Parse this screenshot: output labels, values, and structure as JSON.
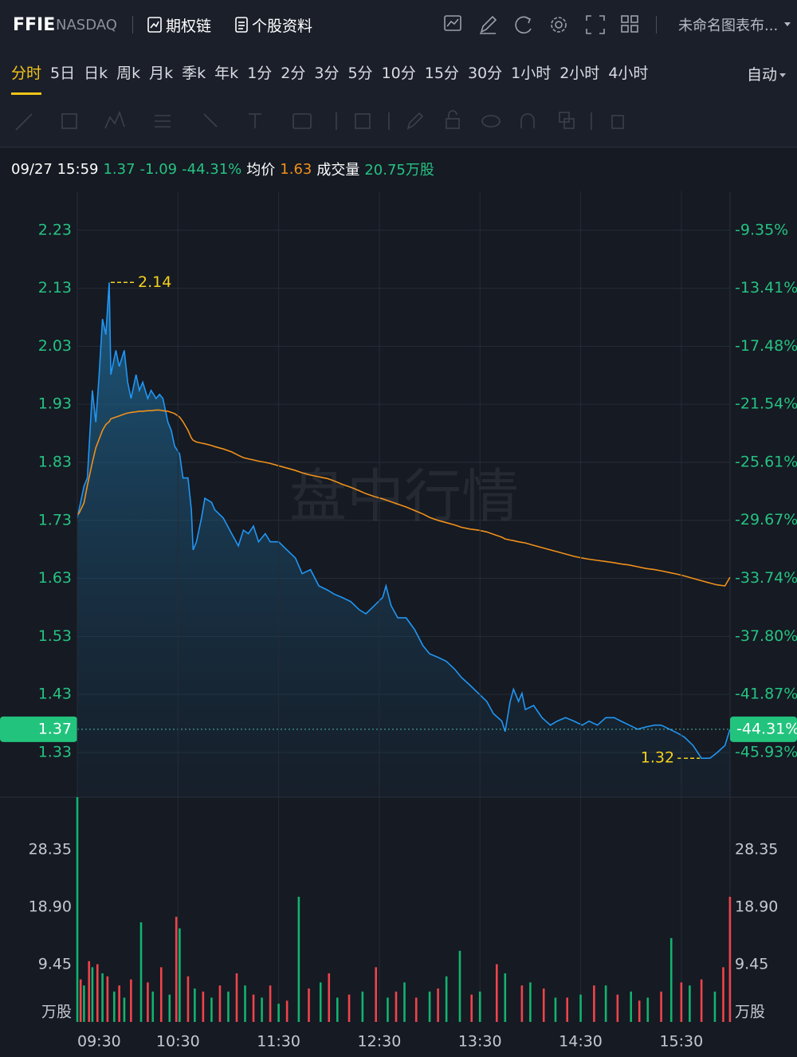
{
  "header": {
    "symbol": "FFIE",
    "exchange": "NASDAQ",
    "options_chain": "期权链",
    "profile": "个股资料",
    "layout_name": "未命名图表布..."
  },
  "periods": {
    "items": [
      "分时",
      "5日",
      "日k",
      "周k",
      "月k",
      "季k",
      "年k",
      "1分",
      "2分",
      "3分",
      "5分",
      "10分",
      "15分",
      "30分",
      "1小时",
      "2小时",
      "4小时"
    ],
    "active": 0,
    "scale_mode": "自动"
  },
  "info": {
    "datetime": "09/27 15:59",
    "price": 1.37,
    "change": -1.09,
    "change_pct": "-44.31%",
    "avg_label": "均价",
    "avg": 1.63,
    "volume_label": "成交量",
    "volume": "20.75万股"
  },
  "chart_data": [
    {
      "type": "line",
      "watermark": "盘中行情",
      "x": [
        "09:30",
        "09:31",
        "09:34",
        "09:36",
        "09:39",
        "09:41",
        "09:43",
        "09:45",
        "09:47",
        "09:49",
        "09:50",
        "09:53",
        "09:55",
        "09:58",
        "10:00",
        "10:02",
        "10:05",
        "10:07",
        "10:09",
        "10:12",
        "10:14",
        "10:17",
        "10:19",
        "10:21",
        "10:24",
        "10:26",
        "10:28",
        "10:31",
        "10:33",
        "10:36",
        "10:38",
        "10:39",
        "10:41",
        "10:44",
        "10:46",
        "10:50",
        "10:52",
        "10:57",
        "11:02",
        "11:06",
        "11:09",
        "11:12",
        "11:15",
        "11:18",
        "11:22",
        "11:25",
        "11:30",
        "11:35",
        "11:40",
        "11:44",
        "11:49",
        "11:54",
        "11:59",
        "12:03",
        "12:08",
        "12:13",
        "12:18",
        "12:22",
        "12:27",
        "12:32",
        "12:34",
        "12:37",
        "12:41",
        "12:46",
        "12:51",
        "12:56",
        "13:00",
        "13:05",
        "13:10",
        "13:15",
        "13:19",
        "13:24",
        "13:29",
        "13:34",
        "13:38",
        "13:43",
        "13:45",
        "13:48",
        "13:50",
        "13:53",
        "13:55",
        "13:57",
        "14:02",
        "14:07",
        "14:12",
        "14:16",
        "14:21",
        "14:26",
        "14:31",
        "14:35",
        "14:40",
        "14:45",
        "14:50",
        "14:54",
        "14:59",
        "15:04",
        "15:09",
        "15:14",
        "15:18",
        "15:23",
        "15:28",
        "15:32",
        "15:37",
        "15:42",
        "15:47",
        "15:51",
        "15:56",
        "15:59"
      ],
      "series": [
        {
          "color": "#2196f3",
          "area": true,
          "values": [
            1.734,
            1.748,
            1.789,
            1.803,
            1.954,
            1.899,
            1.981,
            2.077,
            2.05,
            2.14,
            1.981,
            2.023,
            1.995,
            2.023,
            1.968,
            1.94,
            1.981,
            1.954,
            1.968,
            1.94,
            1.954,
            1.94,
            1.947,
            1.94,
            1.899,
            1.885,
            1.858,
            1.844,
            1.803,
            1.803,
            1.748,
            1.679,
            1.693,
            1.734,
            1.768,
            1.761,
            1.748,
            1.734,
            1.707,
            1.686,
            1.713,
            1.707,
            1.72,
            1.693,
            1.707,
            1.693,
            1.693,
            1.679,
            1.665,
            1.638,
            1.645,
            1.617,
            1.61,
            1.603,
            1.597,
            1.59,
            1.576,
            1.569,
            1.583,
            1.597,
            1.617,
            1.583,
            1.562,
            1.562,
            1.542,
            1.514,
            1.5,
            1.494,
            1.487,
            1.473,
            1.459,
            1.446,
            1.432,
            1.418,
            1.397,
            1.384,
            1.366,
            1.418,
            1.439,
            1.418,
            1.432,
            1.404,
            1.411,
            1.39,
            1.377,
            1.384,
            1.39,
            1.384,
            1.377,
            1.384,
            1.377,
            1.39,
            1.39,
            1.384,
            1.377,
            1.37,
            1.374,
            1.377,
            1.377,
            1.37,
            1.363,
            1.356,
            1.342,
            1.32,
            1.32,
            1.329,
            1.342,
            1.37
          ]
        },
        {
          "color": "#f0901a",
          "area": false,
          "values": [
            1.74,
            1.742,
            1.76,
            1.79,
            1.83,
            1.855,
            1.87,
            1.885,
            1.895,
            1.9,
            1.905,
            1.908,
            1.91,
            1.913,
            1.915,
            1.916,
            1.917,
            1.918,
            1.918,
            1.919,
            1.919,
            1.92,
            1.92,
            1.919,
            1.918,
            1.916,
            1.914,
            1.908,
            1.9,
            1.885,
            1.872,
            1.868,
            1.865,
            1.863,
            1.862,
            1.859,
            1.857,
            1.853,
            1.848,
            1.842,
            1.838,
            1.836,
            1.834,
            1.832,
            1.83,
            1.828,
            1.824,
            1.82,
            1.816,
            1.812,
            1.808,
            1.805,
            1.802,
            1.798,
            1.792,
            1.787,
            1.781,
            1.776,
            1.771,
            1.767,
            1.765,
            1.762,
            1.758,
            1.753,
            1.747,
            1.741,
            1.735,
            1.73,
            1.726,
            1.722,
            1.718,
            1.715,
            1.713,
            1.71,
            1.706,
            1.701,
            1.698,
            1.696,
            1.695,
            1.693,
            1.692,
            1.691,
            1.687,
            1.683,
            1.679,
            1.676,
            1.672,
            1.668,
            1.665,
            1.663,
            1.661,
            1.659,
            1.657,
            1.655,
            1.653,
            1.65,
            1.647,
            1.645,
            1.643,
            1.64,
            1.637,
            1.634,
            1.63,
            1.626,
            1.622,
            1.619,
            1.617,
            1.632
          ]
        }
      ],
      "xlim": [
        "09:30",
        "16:00"
      ],
      "ylim": [
        1.253,
        2.297
      ],
      "yticks": [
        2.23,
        2.13,
        2.03,
        1.93,
        1.83,
        1.73,
        1.63,
        1.53,
        1.43,
        1.33
      ],
      "y2lim": [
        -49.065,
        -6.626
      ],
      "y2ticks": [
        {
          "value": -9.35,
          "label": "-9.35%"
        },
        {
          "value": -13.41,
          "label": "-13.41%"
        },
        {
          "value": -17.48,
          "label": "-17.48%"
        },
        {
          "value": -21.54,
          "label": "-21.54%"
        },
        {
          "value": -25.61,
          "label": "-25.61%"
        },
        {
          "value": -29.67,
          "label": "-29.67%"
        },
        {
          "value": -33.74,
          "label": "-33.74%"
        },
        {
          "value": -37.8,
          "label": "-37.80%"
        },
        {
          "value": -41.87,
          "label": "-41.87%"
        },
        {
          "value": -45.93,
          "label": "-45.93%"
        }
      ],
      "grid": true,
      "current": {
        "value": 1.37,
        "pct_label": "-44.31%"
      },
      "max": {
        "x": "09:49",
        "value": 2.14
      },
      "min": {
        "x": "15:42",
        "value": 1.32
      }
    },
    {
      "type": "bar",
      "xlim": [
        "09:30",
        "16:00"
      ],
      "xticks": [
        "09:30",
        "10:30",
        "11:30",
        "12:30",
        "13:30",
        "14:30",
        "15:30"
      ],
      "ylim": [
        0,
        37
      ],
      "yticks": [
        {
          "value": 0,
          "label": "万股"
        },
        9.45,
        {
          "value": 18.9,
          "label": "18.90"
        },
        28.35
      ],
      "series": [
        {
          "color": "#13b36e",
          "x": [
            "09:30",
            "09:34",
            "09:39",
            "09:45",
            "09:52",
            "09:58",
            "10:08",
            "10:15",
            "10:25",
            "10:31",
            "10:40",
            "10:50",
            "11:00",
            "11:10",
            "11:20",
            "11:30",
            "11:42",
            "11:55",
            "12:05",
            "12:20",
            "12:35",
            "12:45",
            "13:00",
            "13:10",
            "13:18",
            "13:30",
            "13:45",
            "14:00",
            "14:15",
            "14:30",
            "14:45",
            "15:00",
            "15:10",
            "15:24",
            "15:35",
            "15:50"
          ],
          "values": [
            37.0,
            6.0,
            9.0,
            8.0,
            5.0,
            4.0,
            16.4,
            5.0,
            4.5,
            15.4,
            5.5,
            4.0,
            5.0,
            6.0,
            4.0,
            3.0,
            20.6,
            6.5,
            4.0,
            5.0,
            4.0,
            6.5,
            5.0,
            7.5,
            11.7,
            5.0,
            8.0,
            6.5,
            4.0,
            4.5,
            6.0,
            5.0,
            4.0,
            13.8,
            6.0,
            5.0
          ]
        },
        {
          "color": "#f0444a",
          "x": [
            "09:32",
            "09:37",
            "09:42",
            "09:48",
            "09:55",
            "10:02",
            "10:12",
            "10:20",
            "10:29",
            "10:36",
            "10:45",
            "10:55",
            "11:05",
            "11:15",
            "11:25",
            "11:35",
            "11:48",
            "12:00",
            "12:12",
            "12:28",
            "12:40",
            "12:52",
            "13:05",
            "13:25",
            "13:40",
            "13:55",
            "14:08",
            "14:22",
            "14:38",
            "14:52",
            "15:05",
            "15:18",
            "15:30",
            "15:42",
            "15:55",
            "15:59"
          ],
          "values": [
            7.0,
            10.0,
            9.5,
            7.5,
            6.0,
            7.0,
            6.5,
            9.0,
            17.3,
            7.5,
            5.0,
            6.0,
            8.0,
            4.5,
            6.0,
            3.5,
            5.5,
            8.0,
            4.5,
            9.0,
            5.0,
            4.0,
            5.5,
            4.5,
            9.5,
            6.0,
            5.5,
            4.0,
            6.0,
            4.5,
            3.5,
            5.0,
            6.5,
            7.0,
            9.0,
            20.6
          ]
        }
      ]
    }
  ]
}
